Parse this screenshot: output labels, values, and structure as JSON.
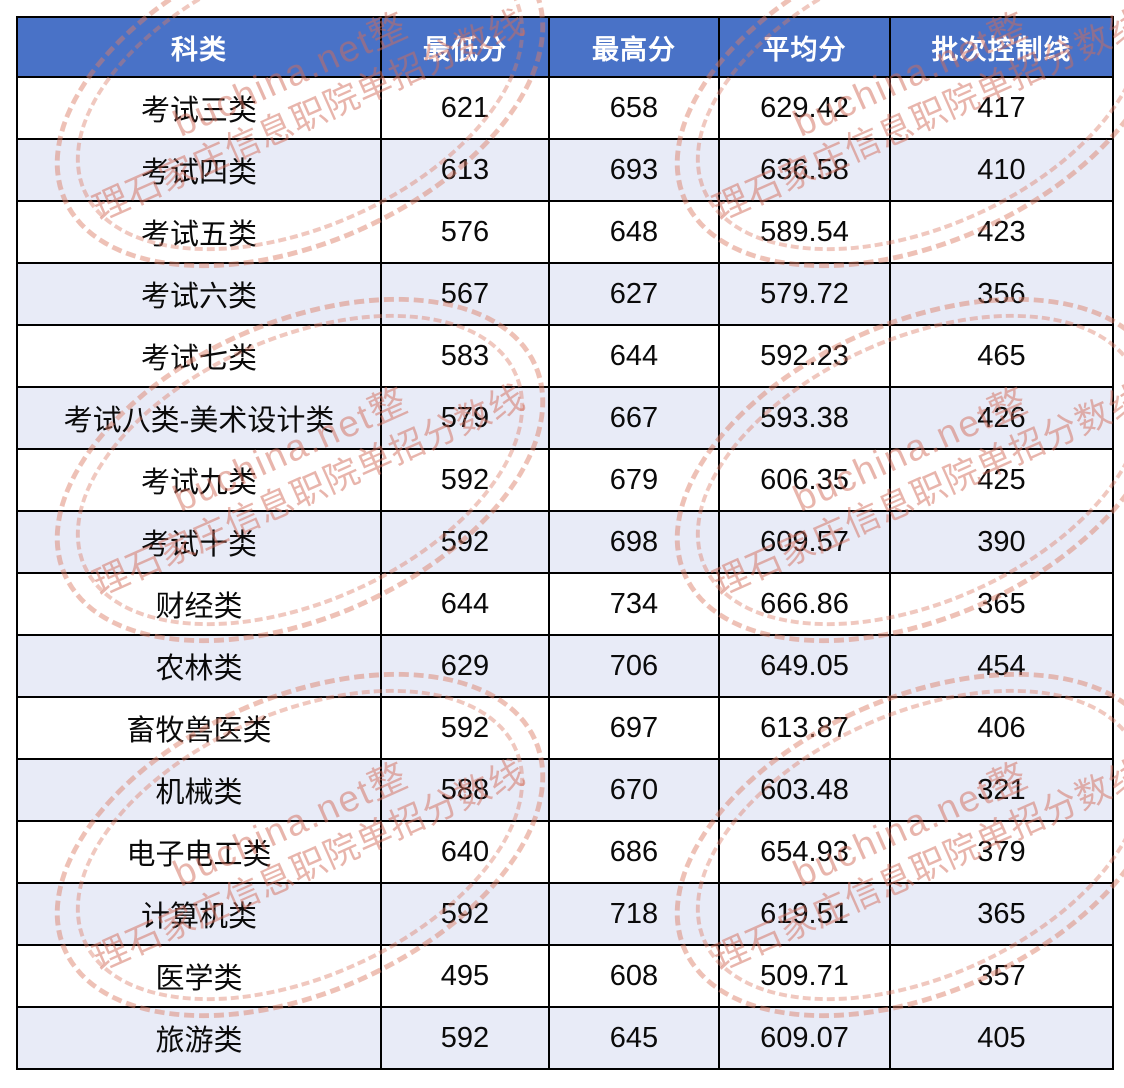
{
  "style": {
    "header_bg": "#4972C7",
    "header_text_color": "#FFFFFF",
    "alt_row_bg": "#E8EBF7",
    "grid_border_color": "#000000",
    "watermark_color": "#D97B66"
  },
  "watermark": {
    "line1": "buchina.net整",
    "line2": "理石家庄信息职院单招分数线"
  },
  "chart_data": {
    "type": "table",
    "title": "",
    "columns": [
      "科类",
      "最低分",
      "最高分",
      "平均分",
      "批次控制线"
    ],
    "rows": [
      [
        "考试三类",
        621,
        658,
        629.42,
        417
      ],
      [
        "考试四类",
        613,
        693,
        636.58,
        410
      ],
      [
        "考试五类",
        576,
        648,
        589.54,
        423
      ],
      [
        "考试六类",
        567,
        627,
        579.72,
        356
      ],
      [
        "考试七类",
        583,
        644,
        592.23,
        465
      ],
      [
        "考试八类-美术设计类",
        579,
        667,
        593.38,
        426
      ],
      [
        "考试九类",
        592,
        679,
        606.35,
        425
      ],
      [
        "考试十类",
        592,
        698,
        609.57,
        390
      ],
      [
        "财经类",
        644,
        734,
        666.86,
        365
      ],
      [
        "农林类",
        629,
        706,
        649.05,
        454
      ],
      [
        "畜牧兽医类",
        592,
        697,
        613.87,
        406
      ],
      [
        "机械类",
        588,
        670,
        603.48,
        321
      ],
      [
        "电子电工类",
        640,
        686,
        654.93,
        379
      ],
      [
        "计算机类",
        592,
        718,
        619.51,
        365
      ],
      [
        "医学类",
        495,
        608,
        509.71,
        357
      ],
      [
        "旅游类",
        592,
        645,
        609.07,
        405
      ]
    ]
  }
}
